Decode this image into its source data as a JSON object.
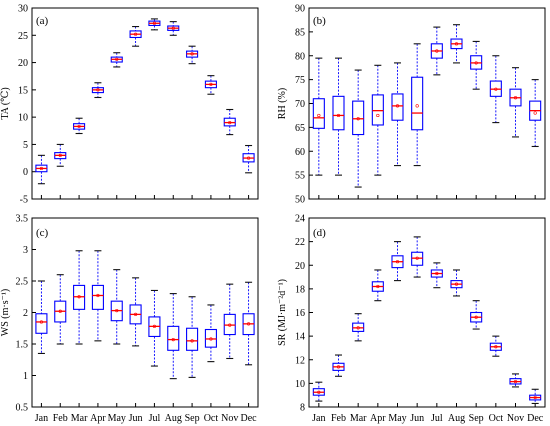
{
  "colors": {
    "box": "#0000ff",
    "median": "#ff0000",
    "mean": "#ff0000",
    "cap": "#111111"
  },
  "chart_data": [
    {
      "type": "boxplot",
      "tag": "(a)",
      "ylabel": "TA (℃)",
      "ylim": [
        -5,
        30
      ],
      "yticks": [
        -5,
        0,
        5,
        10,
        15,
        20,
        25,
        30
      ],
      "show_month_labels": false,
      "categories": [
        "Jan",
        "Feb",
        "Mar",
        "Apr",
        "May",
        "Jun",
        "Jul",
        "Aug",
        "Sep",
        "Oct",
        "Nov",
        "Dec"
      ],
      "boxes": [
        {
          "min": -2.2,
          "q1": 0.0,
          "median": 0.6,
          "mean": 0.6,
          "q3": 1.2,
          "max": 3.0
        },
        {
          "min": 1.0,
          "q1": 2.4,
          "median": 3.0,
          "mean": 3.0,
          "q3": 3.5,
          "max": 5.0
        },
        {
          "min": 7.0,
          "q1": 7.8,
          "median": 8.3,
          "mean": 8.3,
          "q3": 8.8,
          "max": 9.8
        },
        {
          "min": 13.6,
          "q1": 14.5,
          "median": 15.0,
          "mean": 15.0,
          "q3": 15.4,
          "max": 16.3
        },
        {
          "min": 19.2,
          "q1": 20.1,
          "median": 20.6,
          "mean": 20.6,
          "q3": 21.0,
          "max": 21.8
        },
        {
          "min": 23.0,
          "q1": 24.6,
          "median": 25.2,
          "mean": 25.2,
          "q3": 25.8,
          "max": 26.6
        },
        {
          "min": 26.0,
          "q1": 26.8,
          "median": 27.2,
          "mean": 27.2,
          "q3": 27.6,
          "max": 28.0
        },
        {
          "min": 25.0,
          "q1": 25.9,
          "median": 26.3,
          "mean": 26.3,
          "q3": 26.7,
          "max": 27.5
        },
        {
          "min": 19.8,
          "q1": 21.0,
          "median": 21.6,
          "mean": 21.6,
          "q3": 22.1,
          "max": 23.0
        },
        {
          "min": 14.2,
          "q1": 15.4,
          "median": 16.0,
          "mean": 16.0,
          "q3": 16.6,
          "max": 17.6
        },
        {
          "min": 6.8,
          "q1": 8.4,
          "median": 9.0,
          "mean": 9.0,
          "q3": 9.8,
          "max": 11.4
        },
        {
          "min": -0.2,
          "q1": 1.8,
          "median": 2.5,
          "mean": 2.5,
          "q3": 3.3,
          "max": 4.8
        }
      ]
    },
    {
      "type": "boxplot",
      "tag": "(b)",
      "ylabel": "RH (%)",
      "ylim": [
        50,
        90
      ],
      "yticks": [
        50,
        55,
        60,
        65,
        70,
        75,
        80,
        85,
        90
      ],
      "show_month_labels": false,
      "categories": [
        "Jan",
        "Feb",
        "Mar",
        "Apr",
        "May",
        "Jun",
        "Jul",
        "Aug",
        "Sep",
        "Oct",
        "Nov",
        "Dec"
      ],
      "boxes": [
        {
          "min": 55.0,
          "q1": 64.8,
          "median": 67.0,
          "mean": 67.5,
          "q3": 71.0,
          "max": 79.5
        },
        {
          "min": 55.0,
          "q1": 64.5,
          "median": 67.5,
          "mean": 67.5,
          "q3": 71.5,
          "max": 79.5
        },
        {
          "min": 52.5,
          "q1": 63.5,
          "median": 66.8,
          "mean": 66.8,
          "q3": 70.5,
          "max": 77.0
        },
        {
          "min": 55.0,
          "q1": 65.5,
          "median": 68.5,
          "mean": 67.5,
          "q3": 71.8,
          "max": 78.0
        },
        {
          "min": 57.0,
          "q1": 66.5,
          "median": 69.5,
          "mean": 69.5,
          "q3": 72.0,
          "max": 78.5
        },
        {
          "min": 57.0,
          "q1": 64.5,
          "median": 68.0,
          "mean": 69.5,
          "q3": 75.5,
          "max": 82.5
        },
        {
          "min": 76.0,
          "q1": 79.5,
          "median": 81.0,
          "mean": 81.0,
          "q3": 82.5,
          "max": 86.0
        },
        {
          "min": 78.5,
          "q1": 81.5,
          "median": 82.5,
          "mean": 82.5,
          "q3": 83.5,
          "max": 86.5
        },
        {
          "min": 73.0,
          "q1": 77.2,
          "median": 78.5,
          "mean": 78.5,
          "q3": 80.0,
          "max": 83.0
        },
        {
          "min": 66.0,
          "q1": 71.5,
          "median": 73.0,
          "mean": 73.0,
          "q3": 74.7,
          "max": 80.0
        },
        {
          "min": 63.0,
          "q1": 69.5,
          "median": 71.2,
          "mean": 71.2,
          "q3": 73.0,
          "max": 77.5
        },
        {
          "min": 61.0,
          "q1": 66.5,
          "median": 68.5,
          "mean": 68.0,
          "q3": 70.5,
          "max": 75.0
        }
      ]
    },
    {
      "type": "boxplot",
      "tag": "(c)",
      "ylabel": "WS (m·s⁻¹)",
      "ylim": [
        0.5,
        3.5
      ],
      "yticks": [
        0.5,
        1.0,
        1.5,
        2.0,
        2.5,
        3.0,
        3.5
      ],
      "show_month_labels": true,
      "categories": [
        "Jan",
        "Feb",
        "Mar",
        "Apr",
        "May",
        "Jun",
        "Jul",
        "Aug",
        "Sep",
        "Oct",
        "Nov",
        "Dec"
      ],
      "boxes": [
        {
          "min": 1.35,
          "q1": 1.67,
          "median": 1.85,
          "mean": 1.85,
          "q3": 1.98,
          "max": 2.5
        },
        {
          "min": 1.5,
          "q1": 1.85,
          "median": 2.02,
          "mean": 2.02,
          "q3": 2.18,
          "max": 2.6
        },
        {
          "min": 1.5,
          "q1": 2.05,
          "median": 2.25,
          "mean": 2.25,
          "q3": 2.43,
          "max": 2.98
        },
        {
          "min": 1.55,
          "q1": 2.05,
          "median": 2.27,
          "mean": 2.27,
          "q3": 2.43,
          "max": 2.98
        },
        {
          "min": 1.5,
          "q1": 1.87,
          "median": 2.03,
          "mean": 2.03,
          "q3": 2.18,
          "max": 2.68
        },
        {
          "min": 1.47,
          "q1": 1.82,
          "median": 1.97,
          "mean": 1.97,
          "q3": 2.12,
          "max": 2.55
        },
        {
          "min": 1.15,
          "q1": 1.62,
          "median": 1.78,
          "mean": 1.78,
          "q3": 1.93,
          "max": 2.35
        },
        {
          "min": 0.95,
          "q1": 1.4,
          "median": 1.57,
          "mean": 1.57,
          "q3": 1.78,
          "max": 2.3
        },
        {
          "min": 0.97,
          "q1": 1.4,
          "median": 1.55,
          "mean": 1.55,
          "q3": 1.75,
          "max": 2.25
        },
        {
          "min": 1.22,
          "q1": 1.45,
          "median": 1.58,
          "mean": 1.58,
          "q3": 1.73,
          "max": 2.12
        },
        {
          "min": 1.27,
          "q1": 1.65,
          "median": 1.8,
          "mean": 1.8,
          "q3": 1.97,
          "max": 2.45
        },
        {
          "min": 1.17,
          "q1": 1.65,
          "median": 1.82,
          "mean": 1.82,
          "q3": 1.98,
          "max": 2.48
        }
      ]
    },
    {
      "type": "boxplot",
      "tag": "(d)",
      "ylabel": "SR (MJ·m⁻²d⁻¹)",
      "ylim": [
        8,
        24
      ],
      "yticks": [
        8,
        10,
        12,
        14,
        16,
        18,
        20,
        22,
        24
      ],
      "show_month_labels": true,
      "categories": [
        "Jan",
        "Feb",
        "Mar",
        "Apr",
        "May",
        "Jun",
        "Jul",
        "Aug",
        "Sep",
        "Oct",
        "Nov",
        "Dec"
      ],
      "boxes": [
        {
          "min": 8.5,
          "q1": 9.0,
          "median": 9.25,
          "mean": 9.25,
          "q3": 9.55,
          "max": 10.1
        },
        {
          "min": 10.6,
          "q1": 11.1,
          "median": 11.4,
          "mean": 11.4,
          "q3": 11.7,
          "max": 12.4
        },
        {
          "min": 13.6,
          "q1": 14.4,
          "median": 14.7,
          "mean": 14.7,
          "q3": 15.1,
          "max": 15.9
        },
        {
          "min": 17.0,
          "q1": 17.8,
          "median": 18.2,
          "mean": 18.2,
          "q3": 18.6,
          "max": 19.6
        },
        {
          "min": 18.7,
          "q1": 19.8,
          "median": 20.3,
          "mean": 20.3,
          "q3": 20.8,
          "max": 22.0
        },
        {
          "min": 19.0,
          "q1": 20.0,
          "median": 20.6,
          "mean": 20.6,
          "q3": 21.1,
          "max": 22.4
        },
        {
          "min": 18.1,
          "q1": 19.0,
          "median": 19.3,
          "mean": 19.3,
          "q3": 19.6,
          "max": 20.2
        },
        {
          "min": 17.4,
          "q1": 18.1,
          "median": 18.4,
          "mean": 18.4,
          "q3": 18.7,
          "max": 19.6
        },
        {
          "min": 14.6,
          "q1": 15.2,
          "median": 15.6,
          "mean": 15.6,
          "q3": 16.0,
          "max": 17.0
        },
        {
          "min": 12.3,
          "q1": 12.8,
          "median": 13.1,
          "mean": 13.1,
          "q3": 13.4,
          "max": 14.0
        },
        {
          "min": 9.7,
          "q1": 9.95,
          "median": 10.15,
          "mean": 10.15,
          "q3": 10.4,
          "max": 10.8
        },
        {
          "min": 8.3,
          "q1": 8.6,
          "median": 8.8,
          "mean": 8.8,
          "q3": 9.0,
          "max": 9.5
        }
      ]
    }
  ]
}
